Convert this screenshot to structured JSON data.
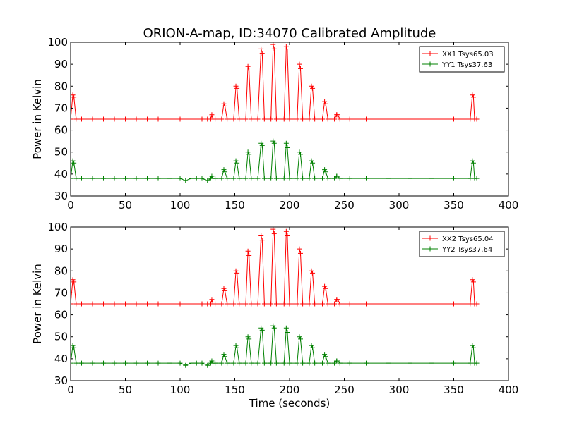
{
  "chart_data": [
    {
      "type": "line",
      "title": "ORION-A-map, ID:34070 Calibrated Amplitude",
      "xlabel": "",
      "ylabel": "Power in Kelvin",
      "xlim": [
        0,
        400
      ],
      "ylim": [
        30,
        100
      ],
      "xticks": [
        "0",
        "50",
        "100",
        "150",
        "200",
        "250",
        "300",
        "350",
        "400"
      ],
      "yticks": [
        "30",
        "40",
        "50",
        "60",
        "70",
        "80",
        "90",
        "100"
      ],
      "grid": false,
      "legend_position": "top-right",
      "series": [
        {
          "name": "XX1 Tsys65.03",
          "color": "#ff0000",
          "marker": "plus",
          "x": [
            0,
            2,
            3,
            5,
            10,
            20,
            30,
            40,
            50,
            60,
            70,
            80,
            90,
            100,
            110,
            120,
            125,
            128,
            129,
            130,
            132,
            138,
            140,
            141,
            143,
            149,
            151,
            152,
            154,
            160,
            162,
            163,
            165,
            171,
            174,
            175,
            177,
            183,
            185,
            186,
            188,
            195,
            197,
            198,
            200,
            207,
            209,
            210,
            212,
            218,
            220,
            221,
            223,
            230,
            232,
            233,
            235,
            241,
            243,
            244,
            246,
            255,
            270,
            290,
            310,
            330,
            350,
            365,
            367,
            368,
            369,
            371
          ],
          "y": [
            65,
            76,
            75,
            65,
            65,
            65,
            65,
            65,
            65,
            65,
            65,
            65,
            65,
            65,
            65,
            65,
            65,
            65,
            67,
            65,
            65,
            65,
            72,
            71,
            65,
            65,
            80,
            79,
            65,
            65,
            89,
            87,
            65,
            65,
            97,
            95,
            65,
            65,
            99,
            97,
            65,
            65,
            98,
            96,
            65,
            65,
            90,
            88,
            65,
            65,
            80,
            79,
            65,
            65,
            73,
            72,
            65,
            65,
            67,
            67,
            65,
            65,
            65,
            65,
            65,
            65,
            65,
            65,
            76,
            75,
            65,
            65
          ]
        },
        {
          "name": "YY1 Tsys37.63",
          "color": "#008000",
          "marker": "plus",
          "x": [
            0,
            2,
            3,
            5,
            10,
            20,
            30,
            40,
            50,
            60,
            70,
            80,
            90,
            100,
            105,
            110,
            115,
            120,
            125,
            128,
            129,
            130,
            132,
            138,
            140,
            141,
            143,
            149,
            151,
            152,
            154,
            160,
            162,
            163,
            165,
            171,
            174,
            175,
            177,
            183,
            185,
            186,
            188,
            195,
            197,
            198,
            200,
            207,
            209,
            210,
            212,
            218,
            220,
            221,
            223,
            230,
            232,
            233,
            235,
            241,
            243,
            244,
            246,
            255,
            270,
            290,
            310,
            330,
            350,
            365,
            367,
            368,
            369,
            371
          ],
          "y": [
            38,
            46,
            45,
            38,
            38,
            38,
            38,
            38,
            38,
            38,
            38,
            38,
            38,
            38,
            37,
            38,
            38,
            38,
            37,
            38,
            39,
            38,
            38,
            38,
            42,
            41,
            38,
            38,
            46,
            45,
            38,
            38,
            50,
            49,
            38,
            38,
            54,
            53,
            38,
            38,
            55,
            54,
            38,
            38,
            54,
            52,
            38,
            38,
            50,
            49,
            38,
            38,
            46,
            45,
            38,
            38,
            42,
            41,
            38,
            38,
            39,
            39,
            38,
            38,
            38,
            38,
            38,
            38,
            38,
            38,
            46,
            45,
            38,
            38
          ]
        }
      ]
    },
    {
      "type": "line",
      "title": "",
      "xlabel": "Time (seconds)",
      "ylabel": "Power in Kelvin",
      "xlim": [
        0,
        400
      ],
      "ylim": [
        30,
        100
      ],
      "xticks": [
        "0",
        "50",
        "100",
        "150",
        "200",
        "250",
        "300",
        "350",
        "400"
      ],
      "yticks": [
        "30",
        "40",
        "50",
        "60",
        "70",
        "80",
        "90",
        "100"
      ],
      "grid": false,
      "legend_position": "top-right",
      "series": [
        {
          "name": "XX2 Tsys65.04",
          "color": "#ff0000",
          "marker": "plus",
          "x": [
            0,
            2,
            3,
            5,
            10,
            20,
            30,
            40,
            50,
            60,
            70,
            80,
            90,
            100,
            110,
            120,
            125,
            128,
            129,
            130,
            132,
            138,
            140,
            141,
            143,
            149,
            151,
            152,
            154,
            160,
            162,
            163,
            165,
            171,
            174,
            175,
            177,
            183,
            185,
            186,
            188,
            195,
            197,
            198,
            200,
            207,
            209,
            210,
            212,
            218,
            220,
            221,
            223,
            230,
            232,
            233,
            235,
            241,
            243,
            244,
            246,
            255,
            270,
            290,
            310,
            330,
            350,
            365,
            367,
            368,
            369,
            371
          ],
          "y": [
            65,
            76,
            75,
            65,
            65,
            65,
            65,
            65,
            65,
            65,
            65,
            65,
            65,
            65,
            65,
            65,
            65,
            65,
            67,
            65,
            65,
            65,
            72,
            71,
            65,
            65,
            80,
            79,
            65,
            65,
            89,
            87,
            65,
            65,
            96,
            94,
            65,
            65,
            99,
            97,
            65,
            65,
            98,
            96,
            65,
            65,
            90,
            88,
            65,
            65,
            80,
            79,
            65,
            65,
            73,
            72,
            65,
            65,
            67,
            67,
            65,
            65,
            65,
            65,
            65,
            65,
            65,
            65,
            76,
            75,
            65,
            65
          ]
        },
        {
          "name": "YY2 Tsys37.64",
          "color": "#008000",
          "marker": "plus",
          "x": [
            0,
            2,
            3,
            5,
            10,
            20,
            30,
            40,
            50,
            60,
            70,
            80,
            90,
            100,
            105,
            110,
            115,
            120,
            125,
            128,
            129,
            130,
            132,
            138,
            140,
            141,
            143,
            149,
            151,
            152,
            154,
            160,
            162,
            163,
            165,
            171,
            174,
            175,
            177,
            183,
            185,
            186,
            188,
            195,
            197,
            198,
            200,
            207,
            209,
            210,
            212,
            218,
            220,
            221,
            223,
            230,
            232,
            233,
            235,
            241,
            243,
            244,
            246,
            255,
            270,
            290,
            310,
            330,
            350,
            365,
            367,
            368,
            369,
            371
          ],
          "y": [
            38,
            46,
            45,
            38,
            38,
            38,
            38,
            38,
            38,
            38,
            38,
            38,
            38,
            38,
            37,
            38,
            38,
            38,
            37,
            38,
            39,
            38,
            38,
            38,
            42,
            41,
            38,
            38,
            46,
            45,
            38,
            38,
            50,
            49,
            38,
            38,
            54,
            53,
            38,
            38,
            55,
            54,
            38,
            38,
            54,
            52,
            38,
            38,
            50,
            49,
            38,
            38,
            46,
            45,
            38,
            38,
            42,
            41,
            38,
            38,
            39,
            39,
            38,
            38,
            38,
            38,
            38,
            38,
            38,
            38,
            46,
            45,
            38,
            38
          ]
        }
      ]
    }
  ]
}
